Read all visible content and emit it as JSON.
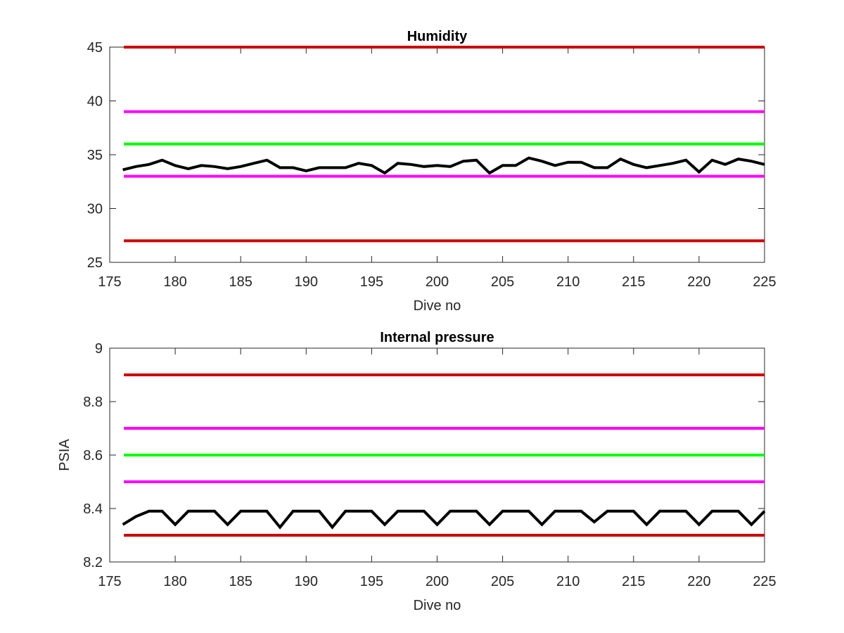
{
  "chart_data": [
    {
      "type": "line",
      "title": "Humidity",
      "xlabel": "Dive no",
      "ylabel": "",
      "xlim": [
        175,
        225
      ],
      "ylim": [
        25,
        45
      ],
      "xticks": [
        175,
        180,
        185,
        190,
        195,
        200,
        205,
        210,
        215,
        220,
        225
      ],
      "yticks": [
        25,
        30,
        35,
        40,
        45
      ],
      "xtick_labels": [
        "175",
        "180",
        "185",
        "190",
        "195",
        "200",
        "205",
        "210",
        "215",
        "220",
        "225"
      ],
      "ytick_labels": [
        "25",
        "30",
        "35",
        "40",
        "45"
      ],
      "grid": false,
      "thresholds": [
        {
          "y": 45,
          "color": "#cc0000"
        },
        {
          "y": 39,
          "color": "#ff00ff"
        },
        {
          "y": 36,
          "color": "#00ff00"
        },
        {
          "y": 33,
          "color": "#ff00ff"
        },
        {
          "y": 27,
          "color": "#cc0000"
        }
      ],
      "series": [
        {
          "color": "#000000",
          "x": [
            176,
            177,
            178,
            179,
            180,
            181,
            182,
            183,
            184,
            185,
            186,
            187,
            188,
            189,
            190,
            191,
            192,
            193,
            194,
            195,
            196,
            197,
            198,
            199,
            200,
            201,
            202,
            203,
            204,
            205,
            206,
            207,
            208,
            209,
            210,
            211,
            212,
            213,
            214,
            215,
            216,
            217,
            218,
            219,
            220,
            221,
            222,
            223,
            224,
            225
          ],
          "y": [
            33.6,
            33.9,
            34.1,
            34.5,
            34.0,
            33.7,
            34.0,
            33.9,
            33.7,
            33.9,
            34.2,
            34.5,
            33.8,
            33.8,
            33.5,
            33.8,
            33.8,
            33.8,
            34.2,
            34.0,
            33.3,
            34.2,
            34.1,
            33.9,
            34.0,
            33.9,
            34.4,
            34.5,
            33.3,
            34.0,
            34.0,
            34.7,
            34.4,
            34.0,
            34.3,
            34.3,
            33.8,
            33.8,
            34.6,
            34.1,
            33.8,
            34.0,
            34.2,
            34.5,
            33.4,
            34.5,
            34.1,
            34.6,
            34.4,
            34.1
          ]
        }
      ]
    },
    {
      "type": "line",
      "title": "Internal pressure",
      "xlabel": "Dive no",
      "ylabel": "PSIA",
      "xlim": [
        175,
        225
      ],
      "ylim": [
        8.2,
        9.0
      ],
      "xticks": [
        175,
        180,
        185,
        190,
        195,
        200,
        205,
        210,
        215,
        220,
        225
      ],
      "yticks": [
        8.2,
        8.4,
        8.6,
        8.8,
        9.0
      ],
      "xtick_labels": [
        "175",
        "180",
        "185",
        "190",
        "195",
        "200",
        "205",
        "210",
        "215",
        "220",
        "225"
      ],
      "ytick_labels": [
        "8.2",
        "8.4",
        "8.6",
        "8.8",
        "9"
      ],
      "grid": false,
      "thresholds": [
        {
          "y": 8.9,
          "color": "#cc0000"
        },
        {
          "y": 8.7,
          "color": "#ff00ff"
        },
        {
          "y": 8.6,
          "color": "#00ff00"
        },
        {
          "y": 8.5,
          "color": "#ff00ff"
        },
        {
          "y": 8.3,
          "color": "#cc0000"
        }
      ],
      "series": [
        {
          "color": "#000000",
          "x": [
            176,
            177,
            178,
            179,
            180,
            181,
            182,
            183,
            184,
            185,
            186,
            187,
            188,
            189,
            190,
            191,
            192,
            193,
            194,
            195,
            196,
            197,
            198,
            199,
            200,
            201,
            202,
            203,
            204,
            205,
            206,
            207,
            208,
            209,
            210,
            211,
            212,
            213,
            214,
            215,
            216,
            217,
            218,
            219,
            220,
            221,
            222,
            223,
            224,
            225
          ],
          "y": [
            8.34,
            8.37,
            8.39,
            8.39,
            8.34,
            8.39,
            8.39,
            8.39,
            8.34,
            8.39,
            8.39,
            8.39,
            8.33,
            8.39,
            8.39,
            8.39,
            8.33,
            8.39,
            8.39,
            8.39,
            8.34,
            8.39,
            8.39,
            8.39,
            8.34,
            8.39,
            8.39,
            8.39,
            8.34,
            8.39,
            8.39,
            8.39,
            8.34,
            8.39,
            8.39,
            8.39,
            8.35,
            8.39,
            8.39,
            8.39,
            8.34,
            8.39,
            8.39,
            8.39,
            8.34,
            8.39,
            8.39,
            8.39,
            8.34,
            8.39
          ]
        }
      ]
    }
  ]
}
